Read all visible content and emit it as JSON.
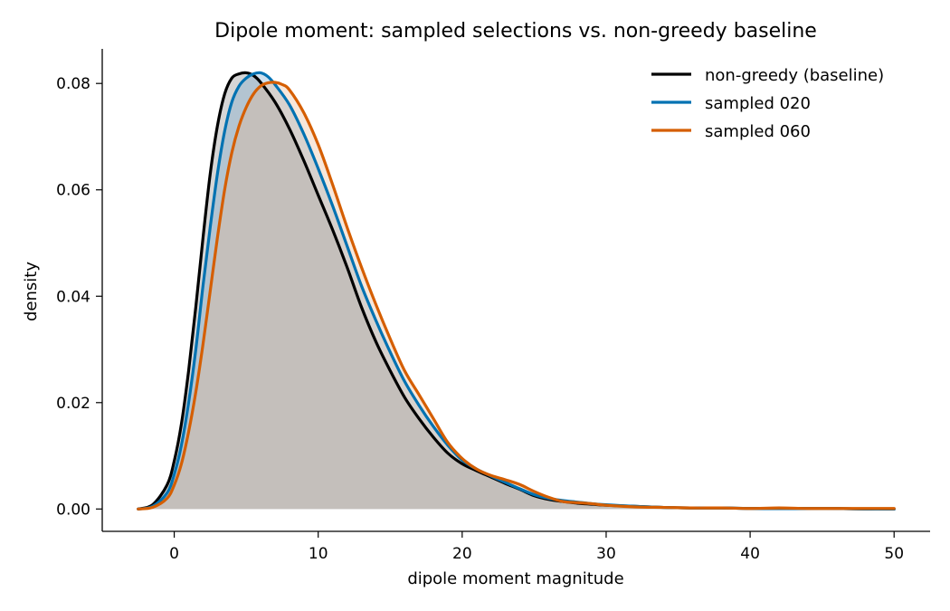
{
  "chart_data": {
    "type": "area",
    "title": "Dipole moment: sampled selections vs. non-greedy baseline",
    "xlabel": "dipole moment magnitude",
    "ylabel": "density",
    "xlim": [
      -5,
      52.5
    ],
    "ylim": [
      -0.0042,
      0.0865
    ],
    "xticks": [
      0,
      10,
      20,
      30,
      40,
      50
    ],
    "xtick_labels": [
      "0",
      "10",
      "20",
      "30",
      "40",
      "50"
    ],
    "yticks": [
      0.0,
      0.02,
      0.04,
      0.06,
      0.08
    ],
    "ytick_labels": [
      "0.00",
      "0.02",
      "0.04",
      "0.06",
      "0.08"
    ],
    "grid": false,
    "legend_position": "top-right",
    "series": [
      {
        "name": "non-greedy (baseline)",
        "color": "#000000",
        "fill": "#808080",
        "x": [
          -2.5,
          -1.5,
          -0.5,
          0,
          0.5,
          1,
          1.5,
          2,
          2.5,
          3,
          3.5,
          4,
          4.5,
          5,
          5.5,
          6,
          7,
          8,
          9,
          10,
          11,
          12,
          13,
          14,
          15,
          16,
          17,
          18,
          19,
          20,
          21,
          22,
          23,
          24,
          25,
          26,
          27,
          28,
          29,
          30,
          32,
          34,
          36,
          38,
          40,
          42,
          44,
          46,
          48,
          50
        ],
        "y": [
          0.0,
          0.0008,
          0.0045,
          0.009,
          0.016,
          0.026,
          0.038,
          0.051,
          0.063,
          0.072,
          0.078,
          0.081,
          0.0818,
          0.082,
          0.0815,
          0.0802,
          0.0765,
          0.0715,
          0.0655,
          0.059,
          0.0525,
          0.0455,
          0.038,
          0.0315,
          0.026,
          0.021,
          0.017,
          0.0135,
          0.0105,
          0.0085,
          0.0072,
          0.006,
          0.0048,
          0.0037,
          0.0025,
          0.0018,
          0.0014,
          0.0011,
          0.0009,
          0.0007,
          0.0005,
          0.0003,
          0.0002,
          0.0002,
          0.0001,
          0.0001,
          0.0001,
          0.0001,
          0.0,
          0.0
        ]
      },
      {
        "name": "sampled 020",
        "color": "#0072B2",
        "fill": "#6aa0c8",
        "x": [
          -2.5,
          -1.5,
          -0.5,
          0,
          0.5,
          1,
          1.5,
          2,
          2.5,
          3,
          3.5,
          4,
          4.5,
          5,
          5.5,
          6,
          6.5,
          7,
          8,
          9,
          10,
          11,
          12,
          13,
          14,
          15,
          16,
          17,
          18,
          19,
          20,
          21,
          22,
          23,
          24,
          25,
          26,
          27,
          28,
          29,
          30,
          32,
          34,
          36,
          38,
          40,
          42,
          44,
          46,
          48,
          50
        ],
        "y": [
          0.0,
          0.0005,
          0.003,
          0.0065,
          0.012,
          0.02,
          0.03,
          0.042,
          0.053,
          0.063,
          0.071,
          0.0765,
          0.0795,
          0.081,
          0.0818,
          0.082,
          0.0813,
          0.0798,
          0.076,
          0.0705,
          0.064,
          0.057,
          0.0495,
          0.042,
          0.0355,
          0.0295,
          0.024,
          0.0195,
          0.0155,
          0.012,
          0.0092,
          0.0075,
          0.0062,
          0.005,
          0.0038,
          0.0027,
          0.002,
          0.0016,
          0.0013,
          0.001,
          0.0008,
          0.0005,
          0.0003,
          0.0002,
          0.0002,
          0.0001,
          0.0001,
          0.0001,
          0.0001,
          0.0,
          0.0
        ]
      },
      {
        "name": "sampled 060",
        "color": "#D55E00",
        "fill": "#e8b48c",
        "x": [
          -2.5,
          -1.5,
          -0.5,
          0,
          0.5,
          1,
          1.5,
          2,
          2.5,
          3,
          3.5,
          4,
          4.5,
          5,
          5.5,
          6,
          6.5,
          7,
          7.5,
          8,
          9,
          10,
          11,
          12,
          13,
          14,
          15,
          16,
          17,
          18,
          19,
          20,
          21,
          22,
          23,
          24,
          25,
          26,
          27,
          28,
          29,
          30,
          32,
          34,
          36,
          38,
          40,
          42,
          44,
          46,
          48,
          50
        ],
        "y": [
          0.0,
          0.0003,
          0.002,
          0.0045,
          0.0085,
          0.0145,
          0.022,
          0.031,
          0.041,
          0.051,
          0.06,
          0.067,
          0.072,
          0.0755,
          0.078,
          0.0795,
          0.0801,
          0.0802,
          0.0798,
          0.0788,
          0.0745,
          0.0685,
          0.061,
          0.053,
          0.0455,
          0.0385,
          0.032,
          0.026,
          0.0215,
          0.017,
          0.0125,
          0.0095,
          0.0075,
          0.0063,
          0.0055,
          0.0046,
          0.0033,
          0.0022,
          0.0014,
          0.0012,
          0.001,
          0.0007,
          0.0004,
          0.0003,
          0.0002,
          0.0002,
          0.0001,
          0.0002,
          0.0001,
          0.0001,
          0.0001,
          0.0001
        ]
      }
    ]
  }
}
